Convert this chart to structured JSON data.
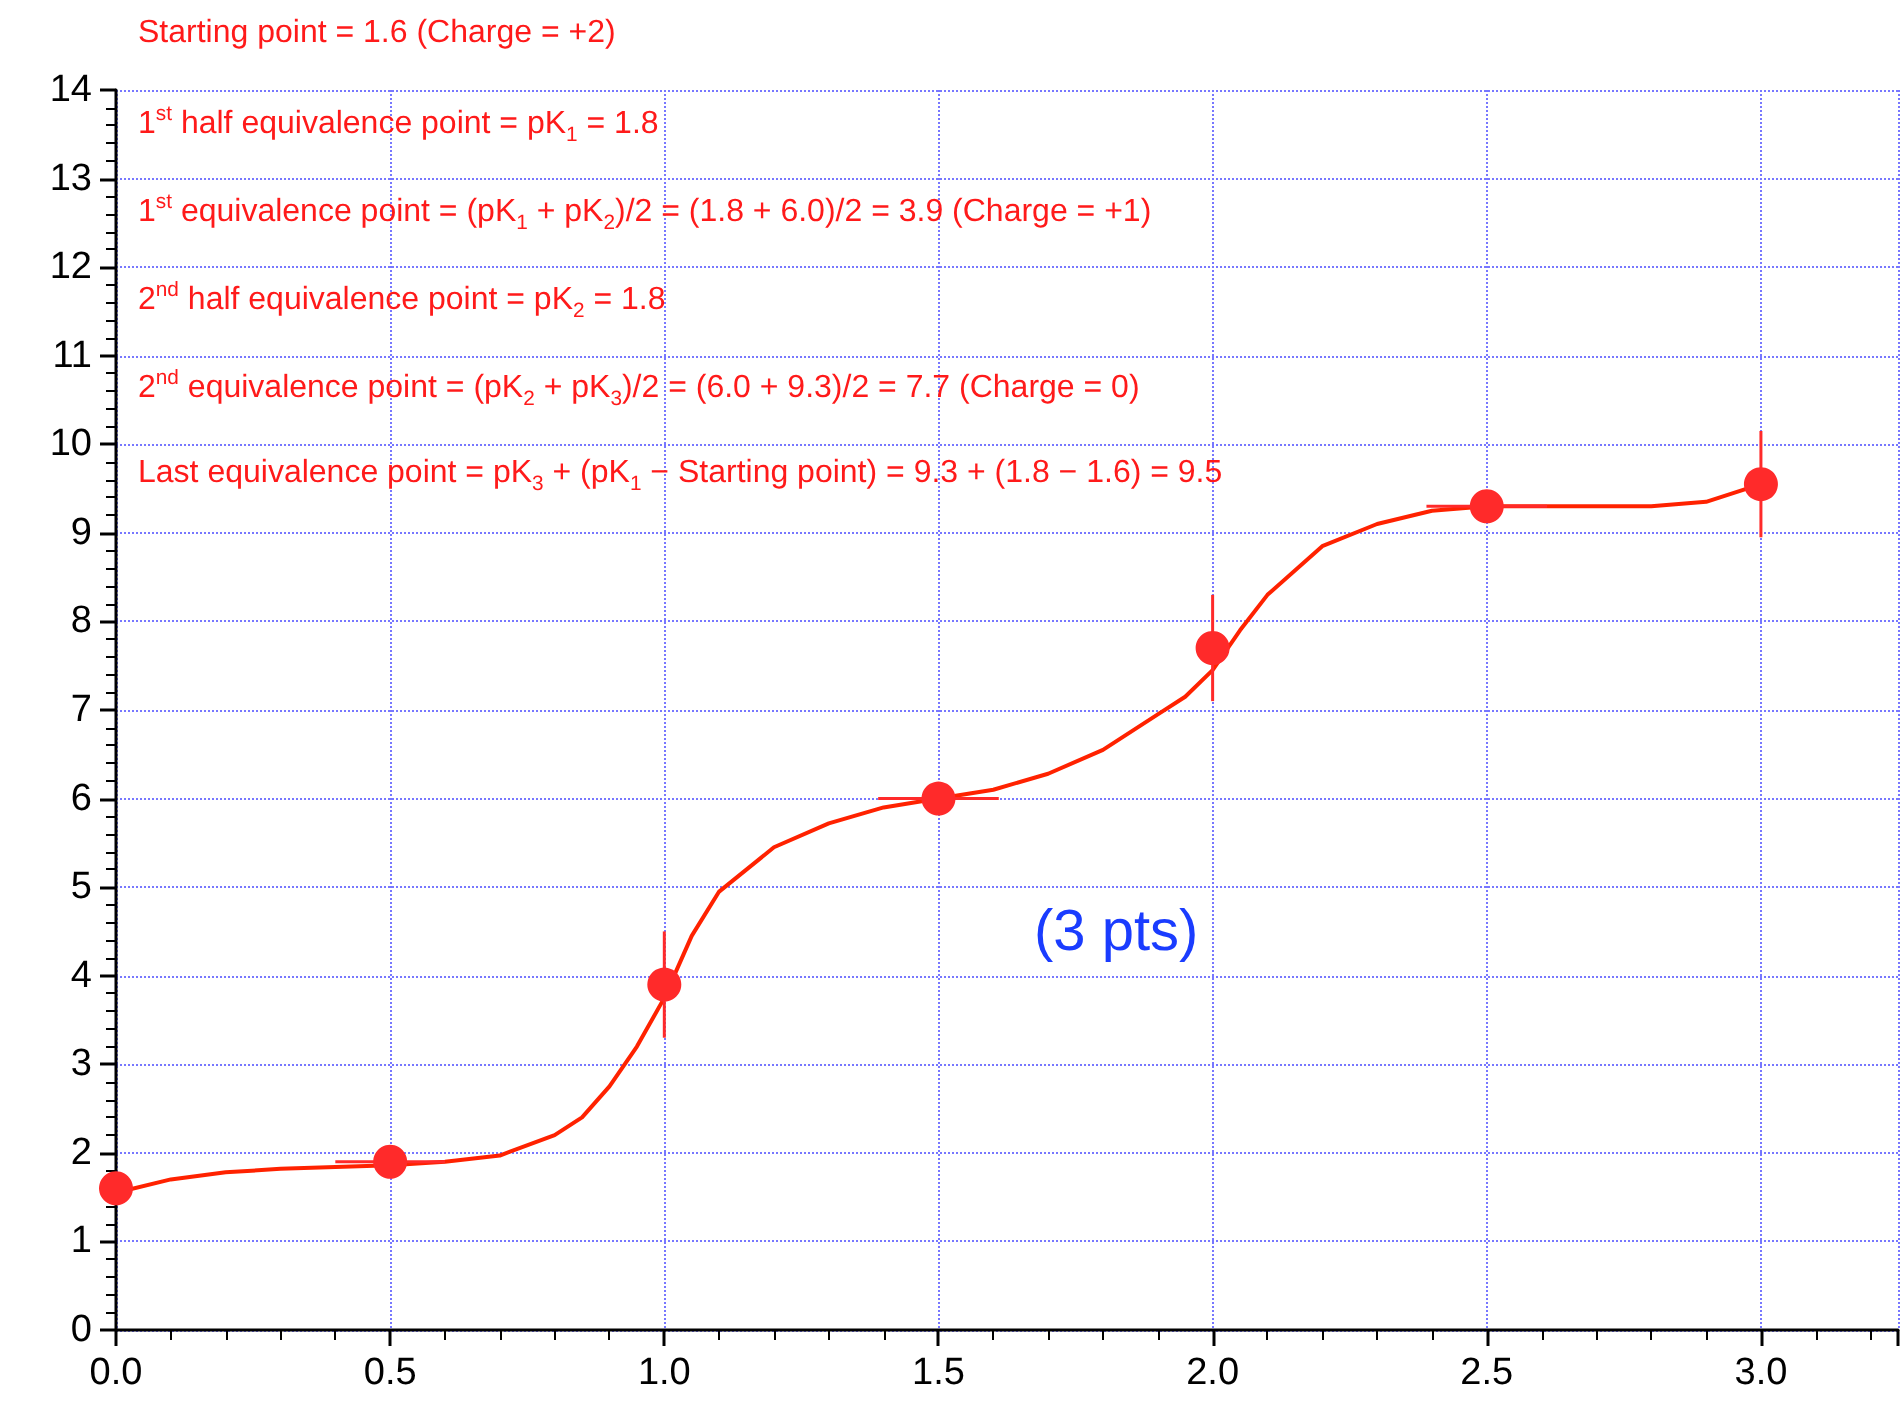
{
  "chart_data": {
    "type": "scatter",
    "annotations": [
      "Starting point = 1.6 (Charge = +2)",
      "1$^{st}$ half equivalence point = pK$_{1}$ = 1.8",
      "1$^{st}$ equivalence point = (pK$_{1}$ + pK$_{2}$)/2 = (1.8 + 6.0)/2 = 3.9 (Charge = +1)",
      "2$^{nd}$ half equivalence point = pK$_{2}$ = 1.8",
      "2$^{nd}$ equivalence point = (pK$_{2}$ + pK$_{3}$)/2 = (6.0 + 9.3)/2 = 7.7 (Charge = 0)",
      "Last equivalence point = pK$_{3}$ + (pK$_{1}$ − Starting point) = 9.3 + (1.8 − 1.6) = 9.5",
      "(3 pts)"
    ],
    "series": [
      {
        "color": "#ff2a2a",
        "x": [
          0,
          0.5,
          1.0,
          1.5,
          2.0,
          2.5,
          3.0
        ],
        "values": [
          1.6,
          1.9,
          3.9,
          6.0,
          7.7,
          9.3,
          9.55
        ],
        "errors": [
          null,
          null,
          0.6,
          null,
          0.6,
          null,
          0.6
        ],
        "xerrors": [
          null,
          0.1,
          null,
          0.11,
          null,
          0.11,
          null
        ],
        "marker": "circle"
      },
      {
        "type": "line",
        "color": "#ff2200",
        "marker": "none",
        "line_style": "solid",
        "x": [
          0,
          0.1,
          0.2,
          0.3,
          0.4,
          0.5,
          0.6,
          0.7,
          0.8,
          0.85,
          0.9,
          0.95,
          1.0,
          1.05,
          1.1,
          1.2,
          1.3,
          1.4,
          1.5,
          1.6,
          1.7,
          1.8,
          1.9,
          1.95,
          2.0,
          2.05,
          2.1,
          2.2,
          2.3,
          2.4,
          2.5,
          2.6,
          2.7,
          2.8,
          2.9,
          3.0
        ],
        "values": [
          1.55,
          1.7,
          1.78,
          1.82,
          1.84,
          1.86,
          1.9,
          1.97,
          2.2,
          2.4,
          2.75,
          3.2,
          3.75,
          4.45,
          4.95,
          5.45,
          5.72,
          5.9,
          6.0,
          6.1,
          6.28,
          6.55,
          6.95,
          7.15,
          7.45,
          7.9,
          8.3,
          8.85,
          9.1,
          9.25,
          9.3,
          9.3,
          9.3,
          9.3,
          9.35,
          9.55
        ]
      }
    ],
    "xlim": [
      0,
      3.25
    ],
    "xticks": [
      {
        "value": 0,
        "label": "0.0"
      },
      {
        "value": 0.5,
        "label": "0.5"
      },
      {
        "value": 1,
        "label": "1.0"
      },
      {
        "value": 1.5,
        "label": "1.5"
      },
      {
        "value": 2,
        "label": "2.0"
      },
      {
        "value": 2.5,
        "label": "2.5"
      },
      {
        "value": 3,
        "label": "3.0"
      }
    ],
    "ylim": [
      0,
      14
    ],
    "yticks": [
      0,
      1,
      2,
      3,
      4,
      5,
      6,
      7,
      8,
      9,
      10,
      11,
      12,
      13,
      14
    ],
    "grid": true
  }
}
